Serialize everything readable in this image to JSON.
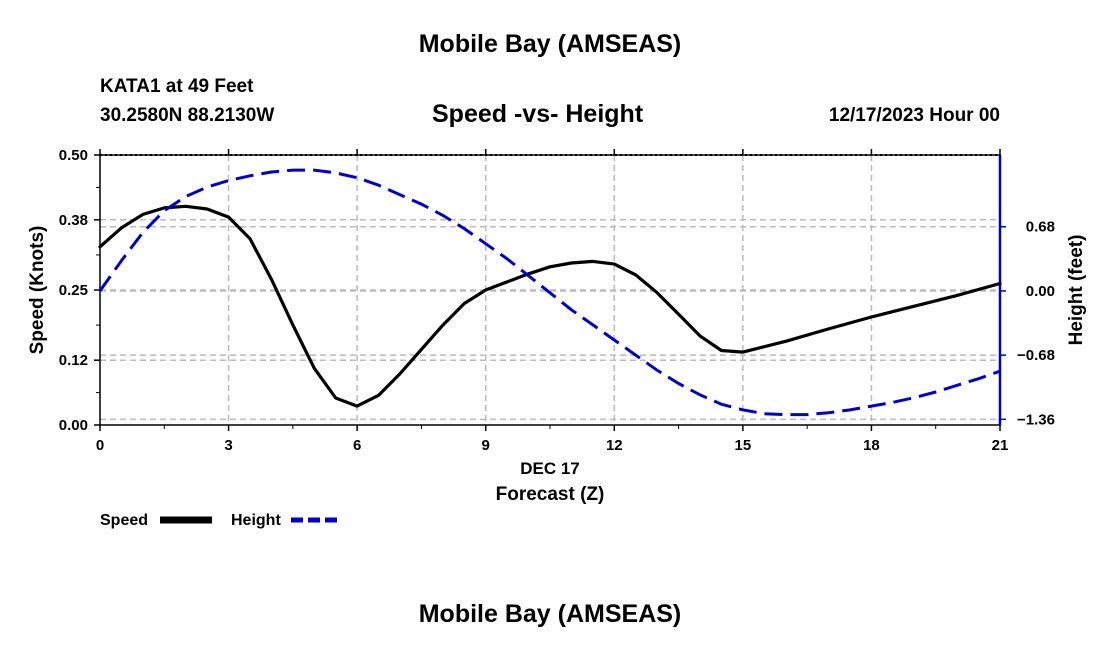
{
  "header": {
    "title": "Mobile Bay (AMSEAS)",
    "station": "KATA1 at 49 Feet",
    "coords": "30.2580N  88.2130W",
    "subtitle": "Speed -vs- Height",
    "date": "12/17/2023 Hour 00"
  },
  "footer": {
    "title": "Mobile Bay (AMSEAS)"
  },
  "chart_data": {
    "type": "line",
    "title": "Speed -vs- Height",
    "xlabel": "Forecast (Z)",
    "xsublabel": "DEC 17",
    "ylabel": "Speed (Knots)",
    "y2label": "Height (feet)",
    "xlim": [
      0,
      21
    ],
    "ylim": [
      0,
      0.5
    ],
    "y2lim": [
      -1.42,
      1.44
    ],
    "xticks": [
      0,
      3,
      6,
      9,
      12,
      15,
      18,
      21
    ],
    "xticklabels": [
      "0",
      "3",
      "6",
      "9",
      "12",
      "15",
      "18",
      "21"
    ],
    "yticks": [
      0.0,
      0.12,
      0.25,
      0.38,
      0.5
    ],
    "yticklabels": [
      "0.00",
      "0.12",
      "0.25",
      "0.38",
      "0.50"
    ],
    "y2ticks": [
      0.68,
      0.0,
      -0.68,
      -1.36
    ],
    "y2ticklabels": [
      "0.68",
      "0.00",
      "−0.68",
      "−1.36"
    ],
    "grid": true,
    "legend": "bottom-left",
    "series": [
      {
        "name": "Speed",
        "axis": "left",
        "color": "#000000",
        "style": "solid",
        "x": [
          0,
          0.5,
          1,
          1.5,
          2,
          2.5,
          3,
          3.5,
          4,
          4.5,
          5,
          5.5,
          6,
          6.5,
          7,
          7.5,
          8,
          8.5,
          9,
          9.5,
          10,
          10.5,
          11,
          11.5,
          12,
          12.5,
          13,
          13.5,
          14,
          14.5,
          15,
          16,
          17,
          18,
          19,
          20,
          21
        ],
        "values": [
          0.33,
          0.365,
          0.39,
          0.402,
          0.405,
          0.4,
          0.385,
          0.345,
          0.27,
          0.185,
          0.105,
          0.05,
          0.035,
          0.055,
          0.095,
          0.14,
          0.185,
          0.225,
          0.25,
          0.265,
          0.28,
          0.293,
          0.3,
          0.303,
          0.298,
          0.278,
          0.245,
          0.205,
          0.165,
          0.138,
          0.135,
          0.155,
          0.178,
          0.2,
          0.22,
          0.24,
          0.262
        ]
      },
      {
        "name": "Height",
        "axis": "right",
        "color": "#0000cc",
        "style": "dashed",
        "x": [
          0,
          0.5,
          1,
          1.5,
          2,
          2.5,
          3,
          3.5,
          4,
          4.5,
          5,
          5.5,
          6,
          6.5,
          7,
          7.5,
          8,
          8.5,
          9,
          9.5,
          10,
          10.5,
          11,
          11.5,
          12,
          12.5,
          13,
          13.5,
          14,
          14.5,
          15,
          15.5,
          16,
          16.5,
          17,
          17.5,
          18,
          18.5,
          19,
          19.5,
          20,
          20.5,
          21
        ],
        "values": [
          0.0,
          0.32,
          0.62,
          0.85,
          1.0,
          1.1,
          1.17,
          1.22,
          1.26,
          1.28,
          1.28,
          1.25,
          1.2,
          1.12,
          1.02,
          0.92,
          0.8,
          0.66,
          0.5,
          0.34,
          0.16,
          -0.02,
          -0.2,
          -0.36,
          -0.52,
          -0.68,
          -0.84,
          -0.98,
          -1.1,
          -1.2,
          -1.26,
          -1.3,
          -1.31,
          -1.31,
          -1.29,
          -1.26,
          -1.22,
          -1.18,
          -1.13,
          -1.07,
          -1.0,
          -0.93,
          -0.85
        ]
      }
    ]
  }
}
